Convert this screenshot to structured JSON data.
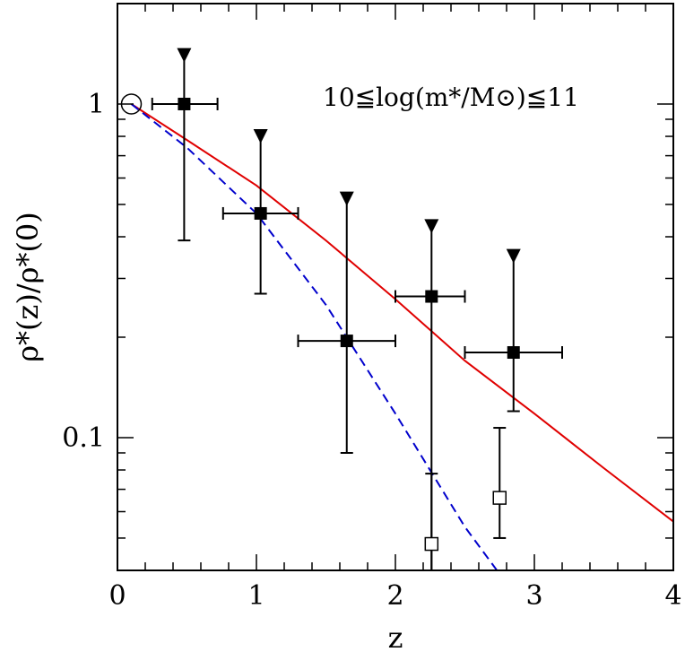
{
  "chart_data": {
    "type": "scatter",
    "xlabel": "z",
    "ylabel": "ρ*(z)/ρ*(0)",
    "annotation": "10≦log(m*/M⊙)≦11",
    "xlim": [
      0,
      4
    ],
    "ylim": [
      0.04,
      2.0
    ],
    "yscale": "log",
    "grid": false,
    "x_ticks": [
      0,
      1,
      2,
      3,
      4
    ],
    "x_tick_labels": [
      "0",
      "1",
      "2",
      "3",
      "4"
    ],
    "y_ticks": [
      0.1,
      1
    ],
    "y_tick_labels": [
      "0.1",
      "1"
    ],
    "reference_point": {
      "x": 0.1,
      "y": 1.0,
      "marker": "open-circle"
    },
    "filled_squares": [
      {
        "x": 0.48,
        "y": 1.0,
        "xerr": [
          0.25,
          0.72
        ],
        "yerr": [
          0.39,
          1.0
        ]
      },
      {
        "x": 1.03,
        "y": 0.47,
        "xerr": [
          0.76,
          1.3
        ],
        "yerr": [
          0.27,
          0.47
        ]
      },
      {
        "x": 1.65,
        "y": 0.195,
        "xerr": [
          1.3,
          2.0
        ],
        "yerr": [
          0.09,
          0.195
        ]
      },
      {
        "x": 2.26,
        "y": 0.265,
        "xerr": [
          2.0,
          2.5
        ],
        "yerr": [
          0.04,
          0.265
        ]
      },
      {
        "x": 2.85,
        "y": 0.18,
        "xerr": [
          2.5,
          3.2
        ],
        "yerr": [
          0.12,
          0.18
        ]
      }
    ],
    "upper_limits": [
      {
        "x": 0.48,
        "y": 1.4
      },
      {
        "x": 1.03,
        "y": 0.8
      },
      {
        "x": 1.65,
        "y": 0.52
      },
      {
        "x": 2.26,
        "y": 0.43
      },
      {
        "x": 2.85,
        "y": 0.35
      }
    ],
    "open_squares": [
      {
        "x": 2.26,
        "y": 0.048,
        "yerr": [
          0.04,
          0.078
        ]
      },
      {
        "x": 2.75,
        "y": 0.066,
        "yerr": [
          0.05,
          0.107
        ]
      }
    ],
    "series": [
      {
        "style": "solid",
        "color": "#e00000",
        "x": [
          0.1,
          0.5,
          1.0,
          1.5,
          2.0,
          2.5,
          3.0,
          3.5,
          4.0
        ],
        "y": [
          1.0,
          0.78,
          0.57,
          0.39,
          0.26,
          0.17,
          0.118,
          0.081,
          0.056
        ]
      },
      {
        "style": "dashed",
        "color": "#0000cc",
        "x": [
          0.1,
          0.5,
          1.0,
          1.5,
          2.0,
          2.5,
          2.75
        ],
        "y": [
          1.0,
          0.74,
          0.47,
          0.25,
          0.118,
          0.054,
          0.039
        ]
      }
    ]
  }
}
